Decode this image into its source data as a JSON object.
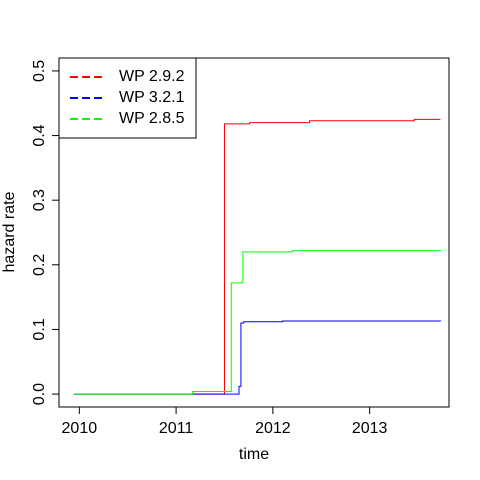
{
  "chart_data": {
    "type": "line",
    "step": "post",
    "xlabel": "time",
    "ylabel": "hazard rate",
    "xlim": [
      2009.79,
      2013.82
    ],
    "ylim": [
      -0.02,
      0.52
    ],
    "xticks": [
      2010,
      2011,
      2012,
      2013
    ],
    "yticks": [
      {
        "value": 0,
        "label": "0.0"
      },
      0.1,
      0.2,
      0.3,
      0.4,
      0.5
    ],
    "legend": "top-left",
    "series": [
      {
        "name": "WP 2.9.2",
        "color": "#ff0000",
        "x": [
          2009.94,
          2011.5,
          2011.76,
          2012.38,
          2013.46,
          2013.73
        ],
        "values": [
          0,
          0.418,
          0.42,
          0.423,
          0.425,
          0.425
        ]
      },
      {
        "name": "WP 3.2.1",
        "color": "#0000ff",
        "x": [
          2009.94,
          2011.65,
          2011.67,
          2011.7,
          2012.1,
          2013.73
        ],
        "values": [
          0,
          0.012,
          0.11,
          0.112,
          0.113,
          0.114
        ]
      },
      {
        "name": "WP 2.8.5",
        "color": "#00ff00",
        "x": [
          2009.94,
          2011.17,
          2011.57,
          2011.69,
          2012.2,
          2013.73
        ],
        "values": [
          0,
          0.004,
          0.172,
          0.22,
          0.222,
          0.223
        ]
      }
    ]
  }
}
